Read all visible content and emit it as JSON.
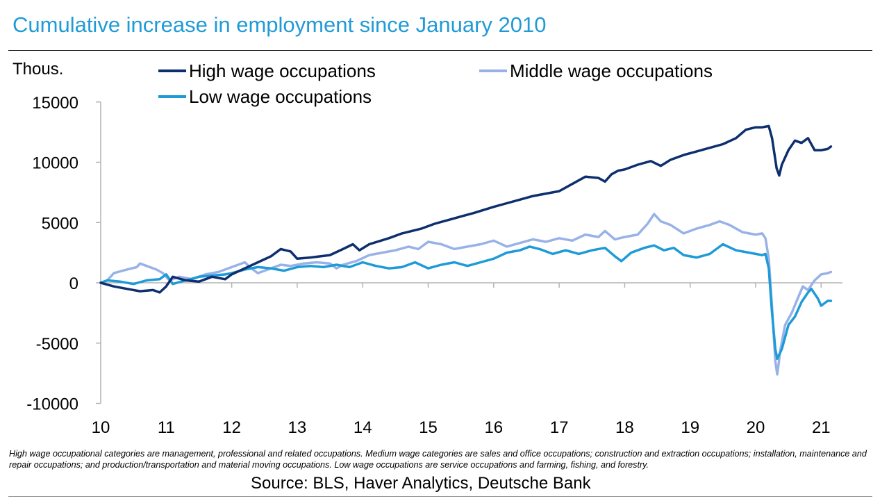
{
  "title": "Cumulative increase in employment since January 2010",
  "footnote": "High wage occupational categories are management, professional and related occupations. Medium wage categories are sales and office occupations; construction and extraction occupations; installation, maintenance and repair occupations; and production/transportation and material moving occupations. Low wage occupations are service occupations and farming, fishing, and forestry.",
  "source": "Source: BLS, Haver Analytics, Deutsche Bank",
  "chart_data": {
    "type": "line",
    "ylabel": "Thous.",
    "ylim": [
      -10000,
      15000
    ],
    "yticks": [
      15000,
      10000,
      5000,
      0,
      -5000,
      -10000
    ],
    "xlim": [
      10,
      21.4
    ],
    "xticks": [
      10,
      11,
      12,
      13,
      14,
      15,
      16,
      17,
      18,
      19,
      20,
      21
    ],
    "xtick_labels": [
      "10",
      "11",
      "12",
      "13",
      "14",
      "15",
      "16",
      "17",
      "18",
      "19",
      "20",
      "21"
    ],
    "grid": false,
    "legend_position": "top",
    "series": [
      {
        "name": "High wage occupations",
        "color": "#0d2f6e",
        "points": [
          [
            10.0,
            0
          ],
          [
            10.2,
            -300
          ],
          [
            10.4,
            -500
          ],
          [
            10.6,
            -700
          ],
          [
            10.8,
            -600
          ],
          [
            10.9,
            -800
          ],
          [
            11.0,
            -300
          ],
          [
            11.1,
            500
          ],
          [
            11.3,
            200
          ],
          [
            11.5,
            100
          ],
          [
            11.7,
            500
          ],
          [
            11.9,
            300
          ],
          [
            12.0,
            700
          ],
          [
            12.2,
            1200
          ],
          [
            12.4,
            1700
          ],
          [
            12.6,
            2200
          ],
          [
            12.75,
            2800
          ],
          [
            12.9,
            2600
          ],
          [
            13.0,
            2000
          ],
          [
            13.2,
            2100
          ],
          [
            13.5,
            2300
          ],
          [
            13.7,
            2800
          ],
          [
            13.85,
            3200
          ],
          [
            13.95,
            2700
          ],
          [
            14.1,
            3200
          ],
          [
            14.4,
            3700
          ],
          [
            14.6,
            4100
          ],
          [
            14.9,
            4500
          ],
          [
            15.1,
            4900
          ],
          [
            15.3,
            5200
          ],
          [
            15.5,
            5500
          ],
          [
            15.7,
            5800
          ],
          [
            16.0,
            6300
          ],
          [
            16.2,
            6600
          ],
          [
            16.4,
            6900
          ],
          [
            16.6,
            7200
          ],
          [
            16.8,
            7400
          ],
          [
            17.0,
            7600
          ],
          [
            17.2,
            8200
          ],
          [
            17.4,
            8800
          ],
          [
            17.6,
            8700
          ],
          [
            17.7,
            8400
          ],
          [
            17.8,
            9000
          ],
          [
            17.9,
            9300
          ],
          [
            18.0,
            9400
          ],
          [
            18.2,
            9800
          ],
          [
            18.4,
            10100
          ],
          [
            18.55,
            9700
          ],
          [
            18.7,
            10200
          ],
          [
            18.9,
            10600
          ],
          [
            19.1,
            10900
          ],
          [
            19.3,
            11200
          ],
          [
            19.5,
            11500
          ],
          [
            19.7,
            12000
          ],
          [
            19.85,
            12700
          ],
          [
            20.0,
            12900
          ],
          [
            20.1,
            12900
          ],
          [
            20.2,
            13000
          ],
          [
            20.25,
            12000
          ],
          [
            20.32,
            9500
          ],
          [
            20.36,
            8900
          ],
          [
            20.4,
            9800
          ],
          [
            20.5,
            11000
          ],
          [
            20.6,
            11800
          ],
          [
            20.7,
            11600
          ],
          [
            20.8,
            12000
          ],
          [
            20.9,
            11000
          ],
          [
            21.0,
            11000
          ],
          [
            21.1,
            11100
          ],
          [
            21.15,
            11300
          ]
        ]
      },
      {
        "name": "Middle wage occupations",
        "color": "#98b2e8",
        "points": [
          [
            10.0,
            0
          ],
          [
            10.1,
            200
          ],
          [
            10.2,
            800
          ],
          [
            10.4,
            1100
          ],
          [
            10.55,
            1300
          ],
          [
            10.6,
            1600
          ],
          [
            10.7,
            1400
          ],
          [
            10.85,
            1100
          ],
          [
            10.95,
            800
          ],
          [
            11.05,
            200
          ],
          [
            11.2,
            500
          ],
          [
            11.4,
            300
          ],
          [
            11.6,
            700
          ],
          [
            11.8,
            900
          ],
          [
            12.0,
            1300
          ],
          [
            12.1,
            1500
          ],
          [
            12.2,
            1700
          ],
          [
            12.3,
            1200
          ],
          [
            12.4,
            800
          ],
          [
            12.6,
            1200
          ],
          [
            12.75,
            1500
          ],
          [
            12.9,
            1400
          ],
          [
            13.1,
            1600
          ],
          [
            13.3,
            1700
          ],
          [
            13.5,
            1600
          ],
          [
            13.6,
            1200
          ],
          [
            13.7,
            1500
          ],
          [
            13.9,
            1800
          ],
          [
            14.1,
            2300
          ],
          [
            14.3,
            2500
          ],
          [
            14.5,
            2700
          ],
          [
            14.7,
            3000
          ],
          [
            14.85,
            2800
          ],
          [
            15.0,
            3400
          ],
          [
            15.2,
            3200
          ],
          [
            15.4,
            2800
          ],
          [
            15.6,
            3000
          ],
          [
            15.8,
            3200
          ],
          [
            16.0,
            3500
          ],
          [
            16.2,
            3000
          ],
          [
            16.4,
            3300
          ],
          [
            16.6,
            3600
          ],
          [
            16.8,
            3400
          ],
          [
            17.0,
            3700
          ],
          [
            17.2,
            3500
          ],
          [
            17.4,
            4000
          ],
          [
            17.6,
            3800
          ],
          [
            17.7,
            4300
          ],
          [
            17.85,
            3600
          ],
          [
            18.0,
            3800
          ],
          [
            18.2,
            4000
          ],
          [
            18.35,
            4900
          ],
          [
            18.45,
            5700
          ],
          [
            18.55,
            5100
          ],
          [
            18.7,
            4800
          ],
          [
            18.9,
            4100
          ],
          [
            19.1,
            4500
          ],
          [
            19.3,
            4800
          ],
          [
            19.45,
            5100
          ],
          [
            19.6,
            4800
          ],
          [
            19.8,
            4200
          ],
          [
            20.0,
            4000
          ],
          [
            20.1,
            4100
          ],
          [
            20.15,
            3700
          ],
          [
            20.2,
            2000
          ],
          [
            20.25,
            -2000
          ],
          [
            20.3,
            -6500
          ],
          [
            20.33,
            -7600
          ],
          [
            20.38,
            -5500
          ],
          [
            20.45,
            -3500
          ],
          [
            20.55,
            -2500
          ],
          [
            20.65,
            -1200
          ],
          [
            20.72,
            -300
          ],
          [
            20.8,
            -600
          ],
          [
            20.9,
            200
          ],
          [
            21.0,
            700
          ],
          [
            21.1,
            800
          ],
          [
            21.15,
            900
          ]
        ]
      },
      {
        "name": "Low wage occupations",
        "color": "#1e9bd7",
        "points": [
          [
            10.0,
            0
          ],
          [
            10.1,
            200
          ],
          [
            10.3,
            100
          ],
          [
            10.5,
            -100
          ],
          [
            10.7,
            200
          ],
          [
            10.9,
            300
          ],
          [
            11.0,
            700
          ],
          [
            11.1,
            -100
          ],
          [
            11.3,
            200
          ],
          [
            11.5,
            500
          ],
          [
            11.7,
            600
          ],
          [
            11.9,
            700
          ],
          [
            12.0,
            800
          ],
          [
            12.2,
            1100
          ],
          [
            12.4,
            1300
          ],
          [
            12.6,
            1200
          ],
          [
            12.8,
            1000
          ],
          [
            13.0,
            1300
          ],
          [
            13.2,
            1400
          ],
          [
            13.4,
            1300
          ],
          [
            13.6,
            1500
          ],
          [
            13.8,
            1300
          ],
          [
            14.0,
            1700
          ],
          [
            14.2,
            1400
          ],
          [
            14.4,
            1200
          ],
          [
            14.6,
            1300
          ],
          [
            14.8,
            1700
          ],
          [
            15.0,
            1200
          ],
          [
            15.2,
            1500
          ],
          [
            15.4,
            1700
          ],
          [
            15.6,
            1400
          ],
          [
            15.8,
            1700
          ],
          [
            16.0,
            2000
          ],
          [
            16.2,
            2500
          ],
          [
            16.4,
            2700
          ],
          [
            16.55,
            3000
          ],
          [
            16.7,
            2800
          ],
          [
            16.9,
            2400
          ],
          [
            17.1,
            2700
          ],
          [
            17.3,
            2400
          ],
          [
            17.5,
            2700
          ],
          [
            17.7,
            2900
          ],
          [
            17.85,
            2200
          ],
          [
            17.95,
            1800
          ],
          [
            18.1,
            2500
          ],
          [
            18.3,
            2900
          ],
          [
            18.45,
            3100
          ],
          [
            18.6,
            2700
          ],
          [
            18.75,
            2900
          ],
          [
            18.9,
            2300
          ],
          [
            19.1,
            2100
          ],
          [
            19.3,
            2400
          ],
          [
            19.5,
            3200
          ],
          [
            19.7,
            2700
          ],
          [
            19.9,
            2500
          ],
          [
            20.1,
            2300
          ],
          [
            20.15,
            2400
          ],
          [
            20.2,
            1200
          ],
          [
            20.25,
            -2500
          ],
          [
            20.3,
            -5500
          ],
          [
            20.33,
            -6300
          ],
          [
            20.4,
            -5500
          ],
          [
            20.5,
            -3500
          ],
          [
            20.6,
            -2800
          ],
          [
            20.7,
            -1600
          ],
          [
            20.8,
            -800
          ],
          [
            20.85,
            -500
          ],
          [
            20.95,
            -1300
          ],
          [
            21.0,
            -1900
          ],
          [
            21.1,
            -1500
          ],
          [
            21.15,
            -1500
          ]
        ]
      }
    ]
  }
}
